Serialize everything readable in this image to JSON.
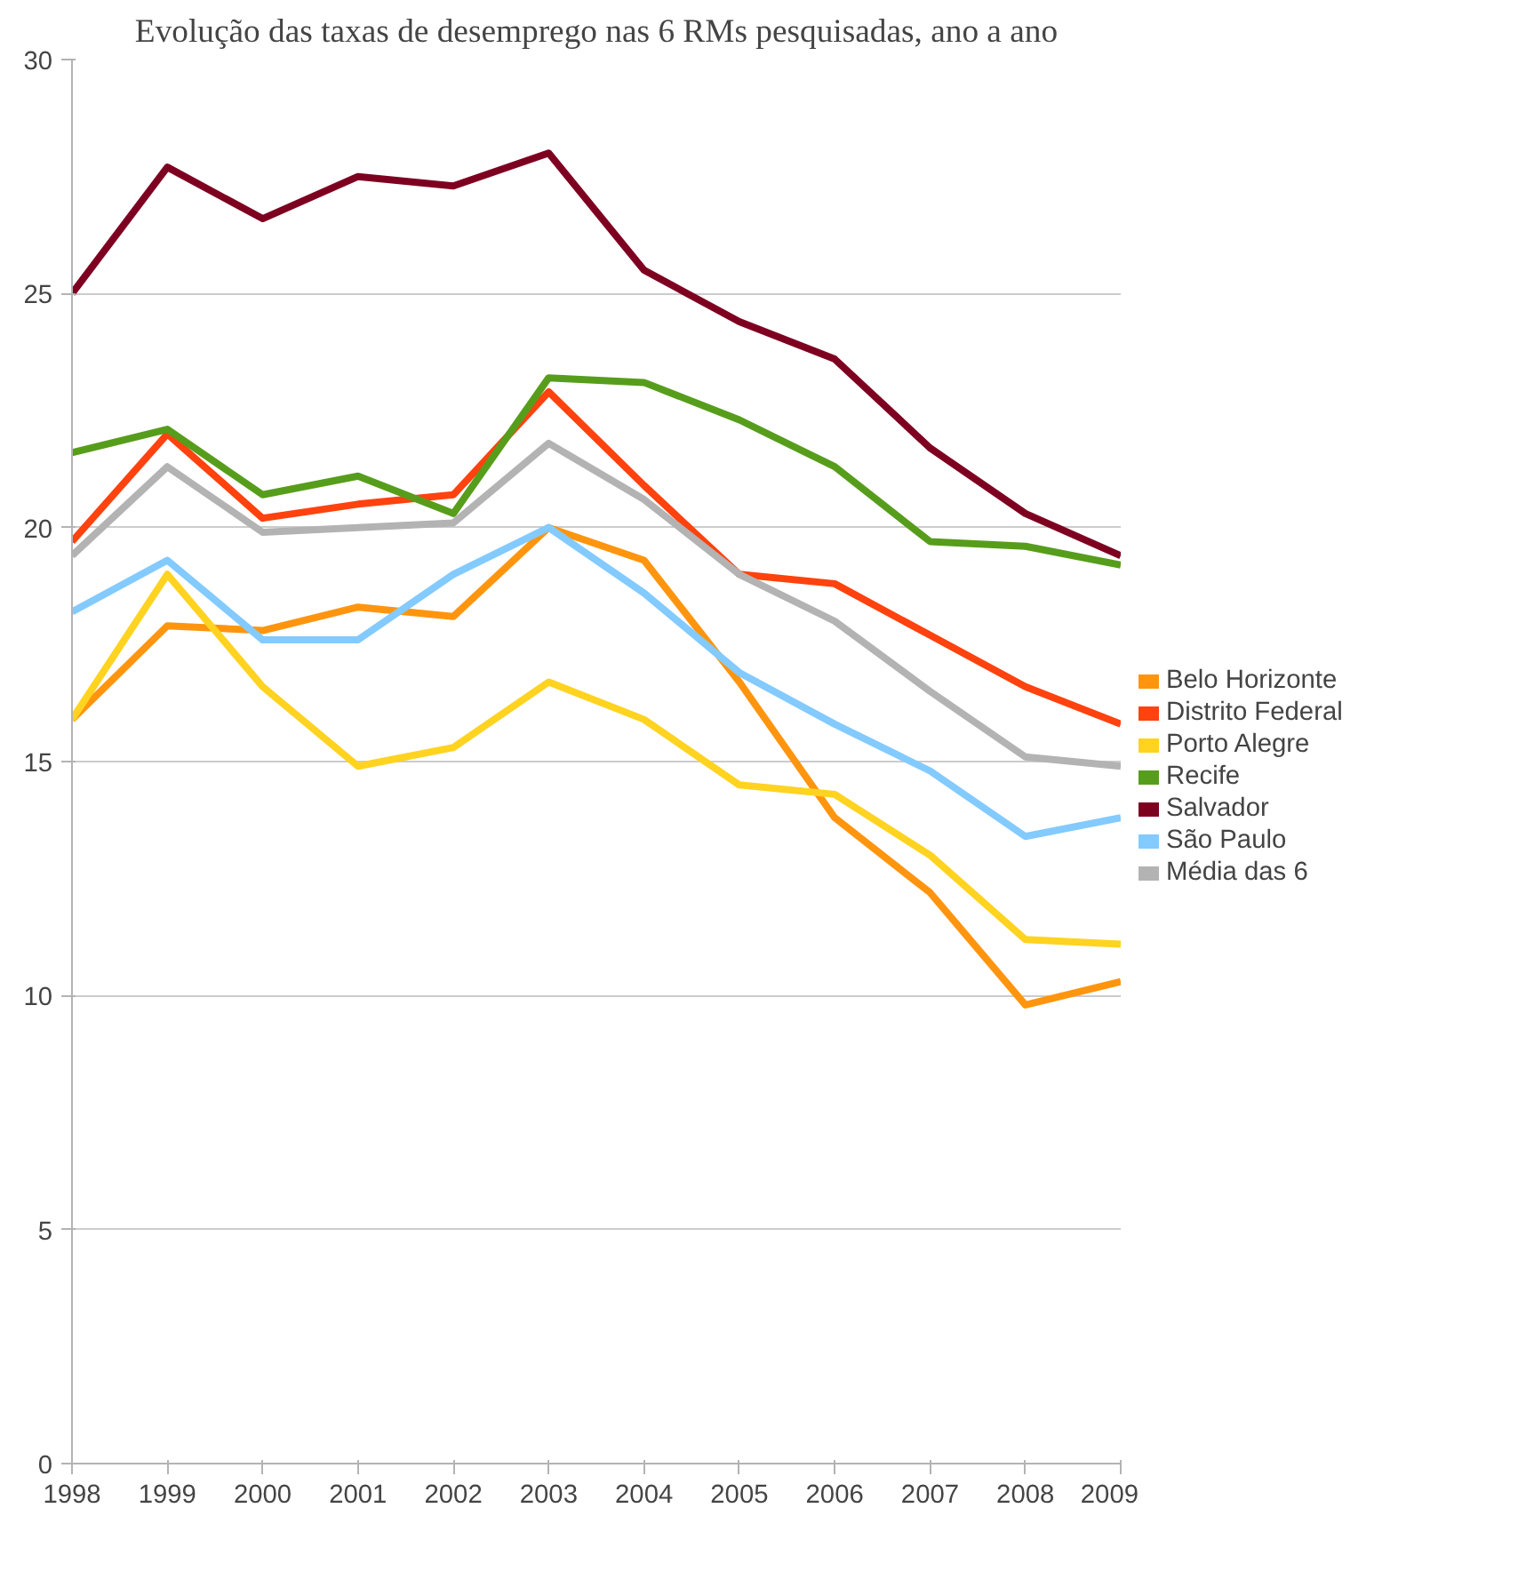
{
  "chart_data": {
    "type": "line",
    "title": "Evolução das taxas de desemprego nas 6 RMs pesquisadas, ano a ano",
    "x": [
      1998,
      1999,
      2000,
      2001,
      2002,
      2003,
      2004,
      2005,
      2006,
      2007,
      2008,
      2009
    ],
    "xlim": [
      1998,
      2009
    ],
    "xticks": [
      1998,
      1999,
      2000,
      2001,
      2002,
      2003,
      2004,
      2005,
      2006,
      2007,
      2008,
      2009
    ],
    "ylim": [
      0,
      30
    ],
    "yticks": [
      0,
      5,
      10,
      15,
      20,
      25,
      30
    ],
    "grid": "y",
    "legend": "right",
    "marker": "none",
    "line_style": "solid",
    "series": [
      {
        "name": "Belo Horizonte",
        "color": "#ff950e",
        "values": [
          15.9,
          17.9,
          17.8,
          18.3,
          18.1,
          20.0,
          19.3,
          16.7,
          13.8,
          12.2,
          9.8,
          10.3
        ]
      },
      {
        "name": "Distrito Federal",
        "color": "#ff420e",
        "values": [
          19.7,
          22.0,
          20.2,
          20.5,
          20.7,
          22.9,
          20.9,
          19.0,
          18.8,
          17.7,
          16.6,
          15.8
        ]
      },
      {
        "name": "Porto Alegre",
        "color": "#ffd320",
        "values": [
          15.9,
          19.0,
          16.6,
          14.9,
          15.3,
          16.7,
          15.9,
          14.5,
          14.3,
          13.0,
          11.2,
          11.1
        ]
      },
      {
        "name": "Recife",
        "color": "#579d1c",
        "values": [
          21.6,
          22.1,
          20.7,
          21.1,
          20.3,
          23.2,
          23.1,
          22.3,
          21.3,
          19.7,
          19.6,
          19.2
        ]
      },
      {
        "name": "Salvador",
        "color": "#7e0021",
        "values": [
          25.0,
          27.7,
          26.6,
          27.5,
          27.3,
          28.0,
          25.5,
          24.4,
          23.6,
          21.7,
          20.3,
          19.4
        ]
      },
      {
        "name": "São Paulo",
        "color": "#83caff",
        "values": [
          18.2,
          19.3,
          17.6,
          17.6,
          19.0,
          20.0,
          18.6,
          16.9,
          15.8,
          14.8,
          13.4,
          13.8
        ]
      },
      {
        "name": "Média das 6",
        "color": "#b3b3b3",
        "values": [
          19.4,
          21.3,
          19.9,
          20.0,
          20.1,
          21.8,
          20.6,
          19.0,
          18.0,
          16.5,
          15.1,
          14.9
        ]
      }
    ]
  }
}
